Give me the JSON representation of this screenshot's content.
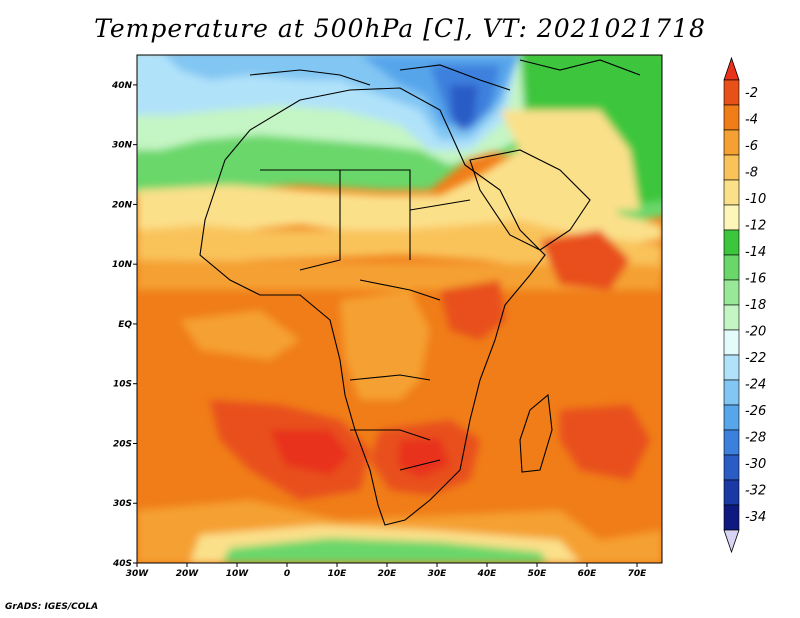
{
  "title": "Temperature at 500hPa [C], VT: 2021021718",
  "credit": "GrADS: IGES/COLA",
  "map": {
    "region": "Africa and surroundings",
    "x_ticks": [
      "30W",
      "20W",
      "10W",
      "0",
      "10E",
      "20E",
      "30E",
      "40E",
      "50E",
      "60E",
      "70E"
    ],
    "y_ticks": [
      "40N",
      "30N",
      "20N",
      "10N",
      "EQ",
      "10S",
      "20S",
      "30S",
      "40S"
    ],
    "lon_range": [
      -30,
      75
    ],
    "lat_range": [
      -40,
      45
    ]
  },
  "colorbar": {
    "labels": [
      "-2",
      "-4",
      "-6",
      "-8",
      "-10",
      "-12",
      "-14",
      "-16",
      "-18",
      "-20",
      "-22",
      "-24",
      "-26",
      "-28",
      "-30",
      "-32",
      "-34"
    ],
    "colors": [
      "#e8501a",
      "#f07d18",
      "#f5a033",
      "#f9c35a",
      "#fbe08a",
      "#fdf6b8",
      "#3cc63c",
      "#6ad76a",
      "#98e898",
      "#c4f5c4",
      "#e4fbfb",
      "#b0e2fa",
      "#82c6f3",
      "#57a5eb",
      "#3c80dd",
      "#2b5cc6",
      "#1a39a5",
      "#0e1a80"
    ],
    "top_arrow_color": "#e8321a",
    "bottom_arrow_color": "#d8d4f4"
  }
}
